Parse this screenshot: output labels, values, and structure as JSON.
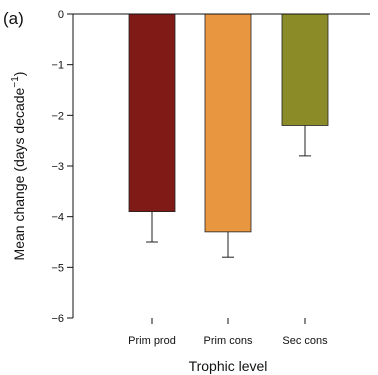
{
  "panel_label": "(a)",
  "chart_data": {
    "type": "bar",
    "categories": [
      "Prim prod",
      "Prim cons",
      "Sec cons"
    ],
    "values": [
      -3.9,
      -4.3,
      -2.2
    ],
    "error_low": [
      -4.5,
      -4.8,
      -2.8
    ],
    "colors": [
      "#7f1a16",
      "#e8963f",
      "#8b8c27"
    ],
    "xlabel": "Trophic level",
    "ylabel": "Mean change (days decade",
    "ylabel_sup": "−1",
    "ylabel_end": ")",
    "ylim": [
      -6,
      0
    ],
    "yticks": [
      0,
      -1,
      -2,
      -3,
      -4,
      -5,
      -6
    ],
    "ytick_labels": [
      "0",
      "−1",
      "−2",
      "−3",
      "−4",
      "−5",
      "−6"
    ],
    "grid": false
  }
}
